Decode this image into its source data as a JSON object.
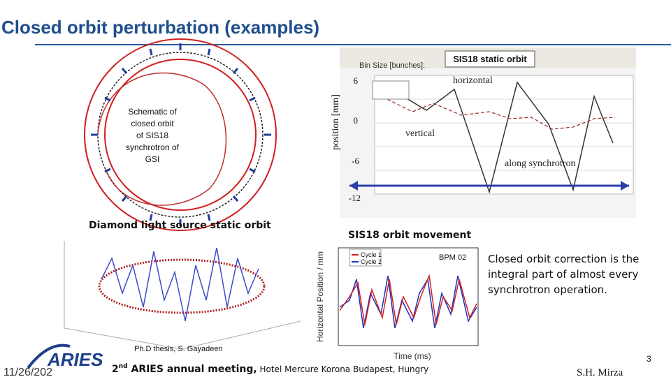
{
  "title": "Closed orbit perturbation (examples)",
  "schematic": {
    "caption_lines": [
      "Schematic of",
      "closed orbit",
      "of SIS18",
      "synchrotron of",
      "GSI"
    ]
  },
  "static_orbit": {
    "title": "SIS18 static orbit",
    "toolbar": "Bin Size [bunches]:",
    "y_label": "position [mm]",
    "y_ticks": [
      "6",
      "0",
      "-6",
      "-12"
    ],
    "horizontal_label": "horizontal",
    "vertical_label": "vertical",
    "x_label": "along synchrotron"
  },
  "diamond": {
    "caption": "Diamond light source static orbit",
    "credit": "Ph.D thesis, S. Gayadeen"
  },
  "movement": {
    "caption": "SIS18 orbit movement",
    "bpm": "BPM 02",
    "legend": [
      "Cycle 1",
      "Cycle 2"
    ],
    "x_label": "Time (ms)",
    "y_label": "Horizontal Position / mm"
  },
  "note": [
    "Closed orbit correction is the",
    "integral part of almost every",
    "synchrotron operation."
  ],
  "footer": {
    "logo": "ARIES",
    "date": "11/26/202",
    "meeting_number": "2",
    "meeting_suffix": "nd",
    "event": " ARIES annual meeting,",
    "venue": " Hotel Mercure Korona Budapest, Hungry",
    "author": "S.H. Mirza",
    "page": "3"
  }
}
